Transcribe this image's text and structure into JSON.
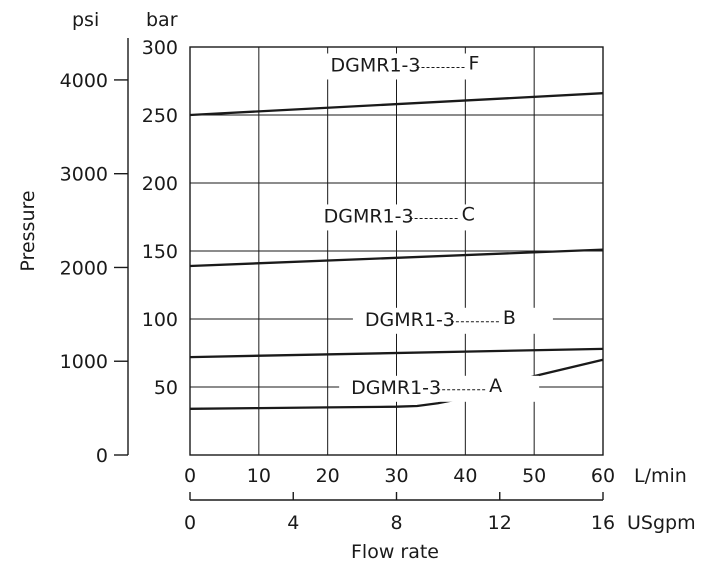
{
  "chart_data": {
    "type": "line",
    "title": "",
    "xlabel": "Flow rate",
    "ylabel": "Pressure",
    "x_unit_primary": "L/min",
    "x_unit_secondary": "USgpm",
    "y_unit_left": "psi",
    "y_unit_right": "bar",
    "xlim": [
      0,
      60
    ],
    "ylim": [
      0,
      300
    ],
    "x_ticks": [
      0,
      10,
      20,
      30,
      40,
      50,
      60
    ],
    "x_ticks_secondary": [
      0,
      4,
      8,
      12,
      16
    ],
    "y_ticks_bar": [
      50,
      100,
      150,
      200,
      250,
      300
    ],
    "y_ticks_psi": [
      0,
      1000,
      2000,
      3000,
      4000
    ],
    "grid": true,
    "series": [
      {
        "name": "DGMR1-3----F",
        "prefix": "DGMR1-3",
        "suffix": "F",
        "x": [
          0,
          60
        ],
        "y": [
          250,
          266
        ]
      },
      {
        "name": "DGMR1-3----C",
        "prefix": "DGMR1-3",
        "suffix": "C",
        "x": [
          0,
          60
        ],
        "y": [
          139,
          151
        ]
      },
      {
        "name": "DGMR1-3----B",
        "prefix": "DGMR1-3",
        "suffix": "B",
        "x": [
          0,
          60
        ],
        "y": [
          72,
          78
        ]
      },
      {
        "name": "DGMR1-3----A",
        "prefix": "DGMR1-3",
        "suffix": "A",
        "x": [
          0,
          10,
          20,
          30,
          33,
          36,
          40,
          50,
          60
        ],
        "y": [
          34,
          34.5,
          35,
          35.5,
          36,
          38,
          42,
          58,
          70
        ]
      }
    ]
  }
}
